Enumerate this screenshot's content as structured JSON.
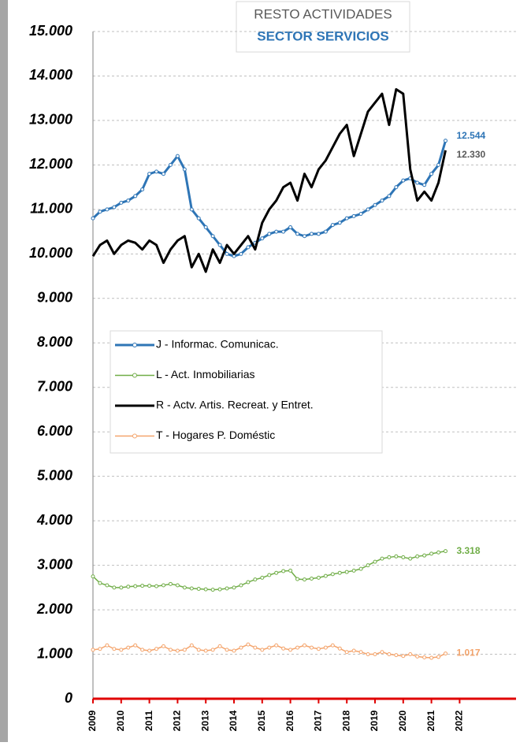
{
  "chart_data": {
    "type": "line",
    "title": "RESTO ACTIVIDADES",
    "subtitle": "SECTOR SERVICIOS",
    "x": [
      2009,
      2009.25,
      2009.5,
      2009.75,
      2010,
      2010.25,
      2010.5,
      2010.75,
      2011,
      2011.25,
      2011.5,
      2011.75,
      2012,
      2012.25,
      2012.5,
      2012.75,
      2013,
      2013.25,
      2013.5,
      2013.75,
      2014,
      2014.25,
      2014.5,
      2014.75,
      2015,
      2015.25,
      2015.5,
      2015.75,
      2016,
      2016.25,
      2016.5,
      2016.75,
      2017,
      2017.25,
      2017.5,
      2017.75,
      2018,
      2018.25,
      2018.5,
      2018.75,
      2019,
      2019.25,
      2019.5,
      2019.75,
      2020,
      2020.25,
      2020.5,
      2020.75,
      2021,
      2021.25,
      2021.5
    ],
    "xlim": [
      2009,
      2024
    ],
    "xticks": [
      2009,
      2010,
      2011,
      2012,
      2013,
      2014,
      2015,
      2016,
      2017,
      2018,
      2019,
      2020,
      2021,
      2022
    ],
    "ylim": [
      0,
      15000
    ],
    "yticks": [
      0,
      {
        "value": 1000,
        "label": "1.000"
      },
      {
        "value": 2000,
        "label": "2.000"
      },
      {
        "value": 3000,
        "label": "3.000"
      },
      {
        "value": 4000,
        "label": "4.000"
      },
      {
        "value": 5000,
        "label": "5.000"
      },
      {
        "value": 6000,
        "label": "6.000"
      },
      {
        "value": 7000,
        "label": "7.000"
      },
      {
        "value": 8000,
        "label": "8.000"
      },
      {
        "value": 9000,
        "label": "9.000"
      },
      {
        "value": 10000,
        "label": "10.000"
      },
      {
        "value": 11000,
        "label": "11.000"
      },
      {
        "value": 12000,
        "label": "12.000"
      },
      {
        "value": 13000,
        "label": "13.000"
      },
      {
        "value": 14000,
        "label": "14.000"
      },
      {
        "value": 15000,
        "label": "15.000"
      }
    ],
    "grid": true,
    "series": [
      {
        "name": "J - Informac. Comunicac.",
        "color": "#2e75b6",
        "marker": true,
        "width": 3,
        "values": [
          10800,
          10950,
          11000,
          11050,
          11150,
          11200,
          11300,
          11450,
          11800,
          11850,
          11800,
          12000,
          12200,
          11900,
          11000,
          10800,
          10600,
          10400,
          10200,
          10000,
          9950,
          10000,
          10150,
          10250,
          10350,
          10450,
          10500,
          10500,
          10600,
          10450,
          10400,
          10450,
          10450,
          10500,
          10650,
          10700,
          10800,
          10850,
          10900,
          11000,
          11100,
          11200,
          11300,
          11500,
          11650,
          11700,
          11600,
          11550,
          11800,
          12000,
          12544
        ],
        "value_labels": [
          null,
          null,
          null,
          null,
          null,
          null,
          null,
          null,
          null,
          null,
          null,
          null,
          null,
          null,
          null,
          null,
          null,
          null,
          null,
          null,
          null,
          null,
          null,
          null,
          null,
          null,
          null,
          null,
          null,
          null,
          null,
          null,
          null,
          null,
          null,
          null,
          null,
          null,
          null,
          null,
          null,
          null,
          null,
          null,
          null,
          null,
          null,
          null,
          null,
          null,
          "12.544"
        ]
      },
      {
        "name": "L - Act. Inmobiliarias",
        "color": "#70ad47",
        "marker": true,
        "width": 1.5,
        "values": [
          2750,
          2600,
          2550,
          2500,
          2500,
          2520,
          2530,
          2540,
          2540,
          2530,
          2550,
          2580,
          2550,
          2500,
          2480,
          2470,
          2460,
          2450,
          2460,
          2480,
          2500,
          2550,
          2620,
          2680,
          2720,
          2780,
          2830,
          2870,
          2880,
          2690,
          2680,
          2700,
          2720,
          2760,
          2800,
          2830,
          2850,
          2880,
          2920,
          3000,
          3080,
          3150,
          3180,
          3200,
          3180,
          3150,
          3200,
          3220,
          3260,
          3290,
          3318
        ],
        "value_labels": [
          null,
          null,
          null,
          null,
          null,
          null,
          null,
          null,
          null,
          null,
          null,
          null,
          null,
          null,
          null,
          null,
          null,
          null,
          null,
          null,
          null,
          null,
          null,
          null,
          null,
          null,
          null,
          null,
          null,
          null,
          null,
          null,
          null,
          null,
          null,
          null,
          null,
          null,
          null,
          null,
          null,
          null,
          null,
          null,
          null,
          null,
          null,
          null,
          null,
          null,
          "3.318"
        ]
      },
      {
        "name": "R - Actv. Artis. Recreat. y Entret.",
        "color": "#000000",
        "marker": false,
        "width": 3,
        "values": [
          9950,
          10200,
          10300,
          10000,
          10200,
          10300,
          10250,
          10100,
          10300,
          10200,
          9800,
          10100,
          10300,
          10400,
          9700,
          10000,
          9600,
          10100,
          9800,
          10200,
          10000,
          10200,
          10400,
          10100,
          10700,
          11000,
          11200,
          11500,
          11600,
          11200,
          11800,
          11500,
          11900,
          12100,
          12400,
          12700,
          12900,
          12200,
          12700,
          13200,
          13400,
          13600,
          12900,
          13700,
          13600,
          11900,
          11200,
          11400,
          11200,
          11600,
          12330
        ],
        "value_labels": [
          null,
          null,
          null,
          null,
          null,
          null,
          null,
          null,
          null,
          null,
          null,
          null,
          null,
          null,
          null,
          null,
          null,
          null,
          null,
          null,
          null,
          null,
          null,
          null,
          null,
          null,
          null,
          null,
          null,
          null,
          null,
          null,
          null,
          null,
          null,
          null,
          null,
          null,
          null,
          null,
          null,
          null,
          null,
          null,
          null,
          null,
          null,
          null,
          null,
          null,
          "12.330"
        ]
      },
      {
        "name": "T - Hogares P. Doméstic",
        "color": "#f4a46c",
        "marker": true,
        "width": 1.5,
        "values": [
          1100,
          1120,
          1200,
          1120,
          1100,
          1150,
          1200,
          1100,
          1080,
          1120,
          1180,
          1100,
          1080,
          1100,
          1200,
          1100,
          1080,
          1100,
          1180,
          1100,
          1080,
          1150,
          1220,
          1150,
          1100,
          1150,
          1200,
          1130,
          1100,
          1150,
          1200,
          1150,
          1120,
          1150,
          1200,
          1130,
          1050,
          1080,
          1050,
          1000,
          1000,
          1050,
          1000,
          980,
          960,
          1000,
          950,
          930,
          920,
          940,
          1017
        ],
        "value_labels": [
          null,
          null,
          null,
          null,
          null,
          null,
          null,
          null,
          null,
          null,
          null,
          null,
          null,
          null,
          null,
          null,
          null,
          null,
          null,
          null,
          null,
          null,
          null,
          null,
          null,
          null,
          null,
          null,
          null,
          null,
          null,
          null,
          null,
          null,
          null,
          null,
          null,
          null,
          null,
          null,
          null,
          null,
          null,
          null,
          null,
          null,
          null,
          null,
          null,
          null,
          "1.017"
        ]
      }
    ]
  }
}
